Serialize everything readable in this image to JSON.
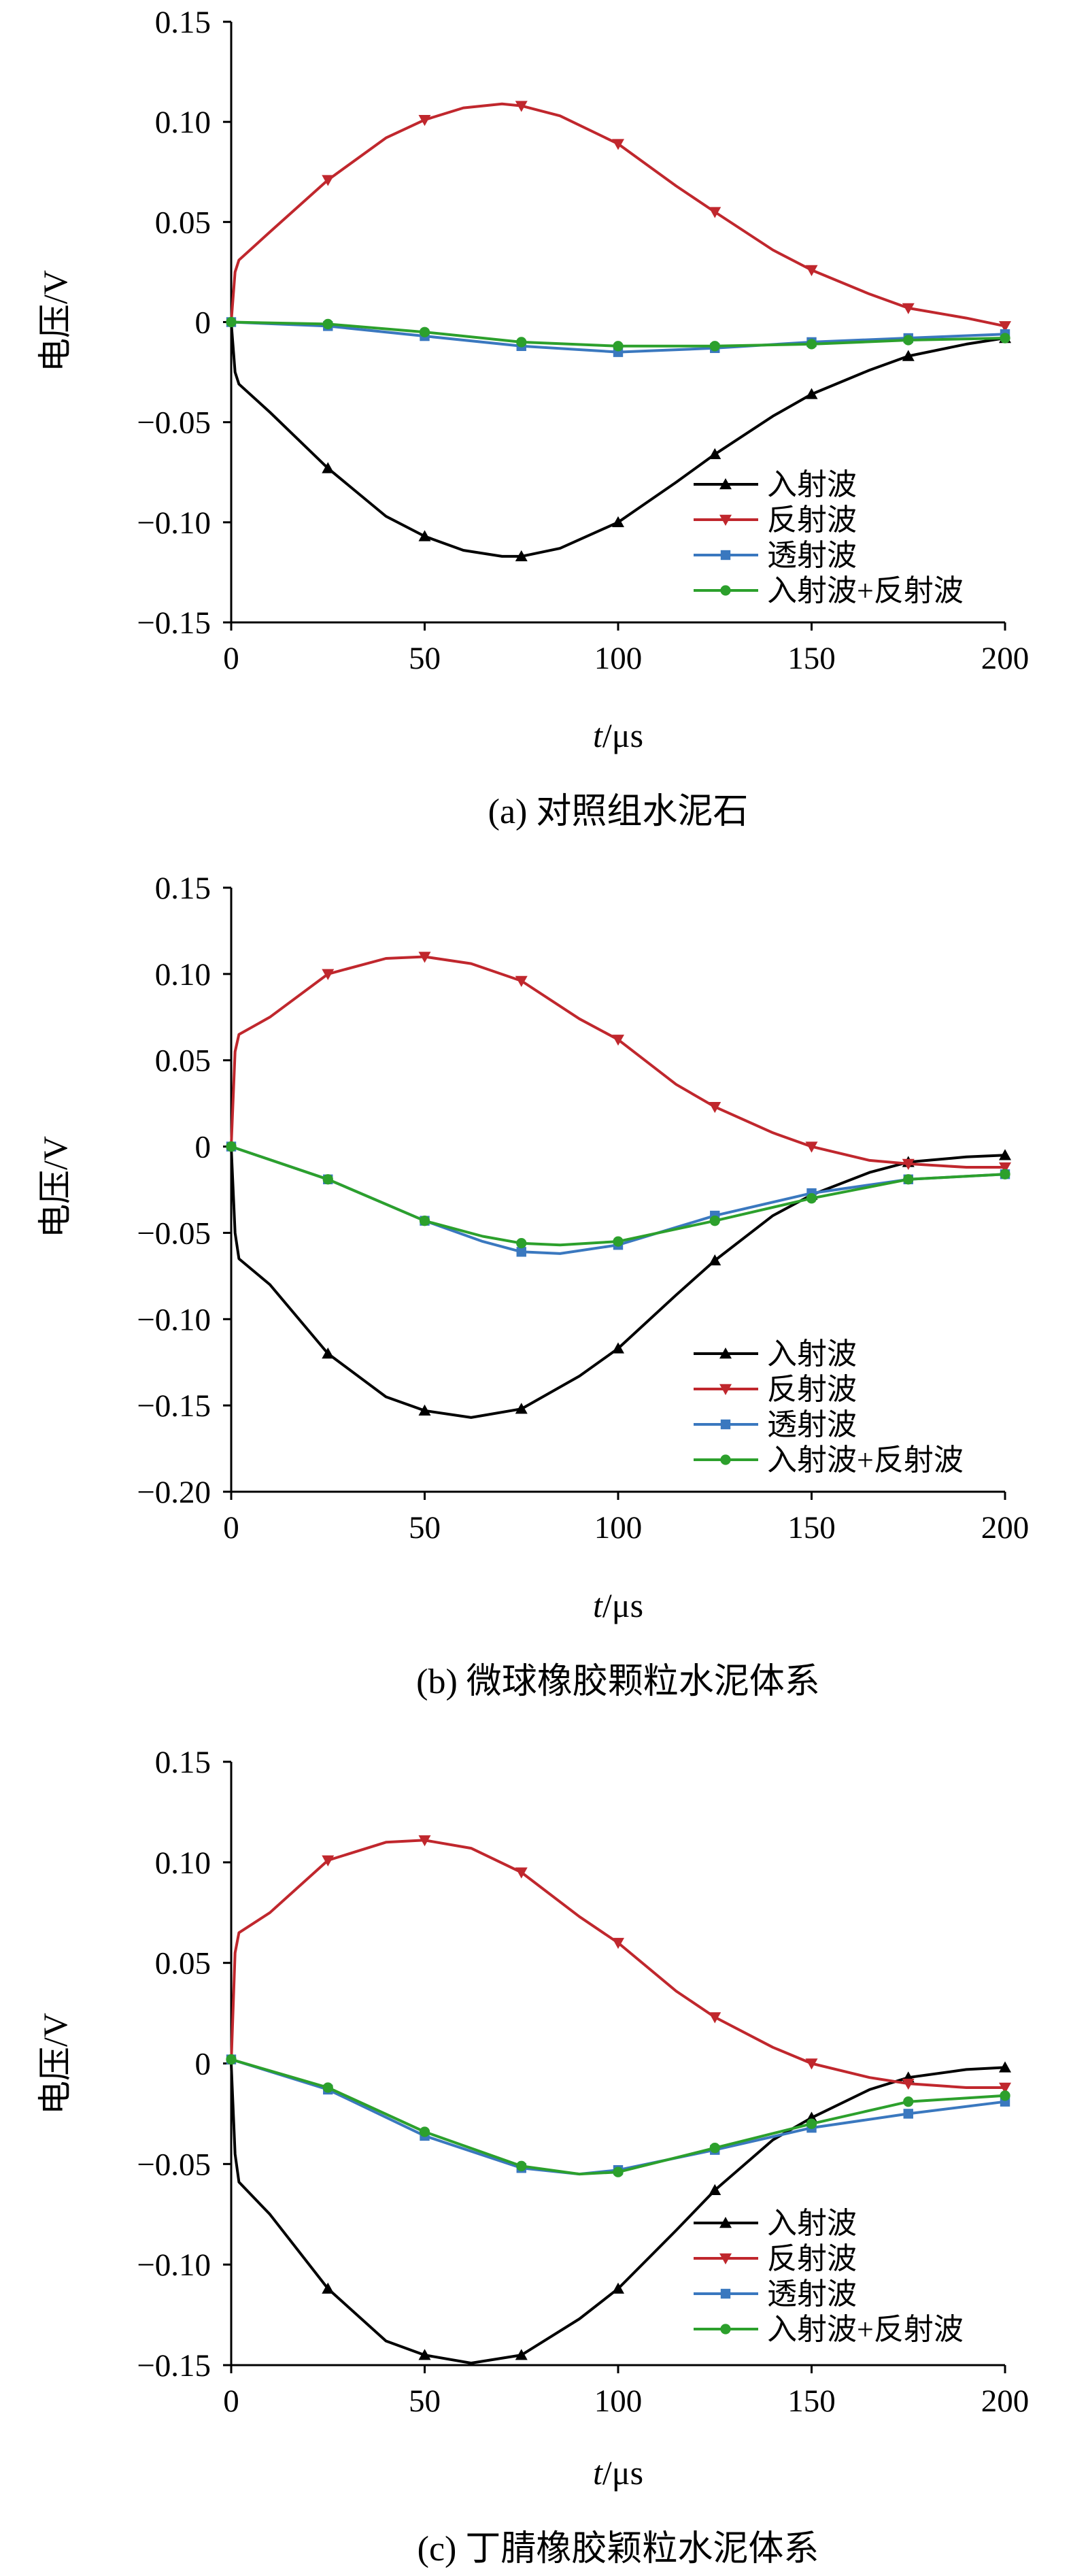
{
  "figure": {
    "panels": [
      {
        "caption": "(a) 对照组水泥石",
        "ylabel": "电压/V",
        "xlabel_italic": "t",
        "xlabel_unit": "/μs"
      },
      {
        "caption": "(b) 微球橡胶颗粒水泥体系",
        "ylabel": "电压/V",
        "xlabel_italic": "t",
        "xlabel_unit": "/μs"
      },
      {
        "caption": "(c) 丁腈橡胶颖粒水泥体系",
        "ylabel": "电压/V",
        "xlabel_italic": "t",
        "xlabel_unit": "/μs"
      }
    ]
  },
  "chart_data": [
    {
      "type": "line",
      "xlabel": "t/μs",
      "ylabel": "电压/V",
      "caption": "(a) 对照组水泥石",
      "xlim": [
        0,
        200
      ],
      "ylim": [
        -0.15,
        0.15
      ],
      "xticks": [
        0,
        50,
        100,
        150,
        200
      ],
      "xtick_labels": [
        "0",
        "50",
        "100",
        "150",
        "200"
      ],
      "yticks": [
        0.15,
        0.1,
        0.05,
        0,
        -0.05,
        -0.1,
        -0.15
      ],
      "ytick_labels": [
        "0.15",
        "0.10",
        "0.05",
        "0",
        "−0.05",
        "−0.10",
        "−0.15"
      ],
      "legend_position": "lower-right",
      "series": [
        {
          "name": "入射波",
          "color": "#000000",
          "marker": "triangle-up",
          "x": [
            0,
            1,
            2,
            10,
            25,
            40,
            50,
            60,
            70,
            75,
            85,
            100,
            115,
            125,
            140,
            150,
            165,
            175,
            190,
            200
          ],
          "y": [
            0,
            -0.025,
            -0.031,
            -0.045,
            -0.073,
            -0.097,
            -0.107,
            -0.114,
            -0.117,
            -0.117,
            -0.113,
            -0.1,
            -0.08,
            -0.066,
            -0.047,
            -0.036,
            -0.024,
            -0.017,
            -0.011,
            -0.008
          ]
        },
        {
          "name": "反射波",
          "color": "#c0272d",
          "marker": "triangle-down",
          "x": [
            0,
            1,
            2,
            10,
            25,
            40,
            50,
            60,
            70,
            75,
            85,
            100,
            115,
            125,
            140,
            150,
            165,
            175,
            190,
            200
          ],
          "y": [
            0,
            0.025,
            0.031,
            0.045,
            0.071,
            0.092,
            0.101,
            0.107,
            0.109,
            0.108,
            0.103,
            0.089,
            0.068,
            0.055,
            0.036,
            0.026,
            0.014,
            0.007,
            0.002,
            -0.002
          ]
        },
        {
          "name": "透射波",
          "color": "#3a78bf",
          "marker": "square",
          "x": [
            0,
            25,
            50,
            75,
            100,
            125,
            150,
            175,
            200
          ],
          "y": [
            0,
            -0.002,
            -0.007,
            -0.012,
            -0.015,
            -0.013,
            -0.01,
            -0.008,
            -0.006
          ]
        },
        {
          "name": "入射波+反射波",
          "color": "#2ca02c",
          "marker": "circle",
          "x": [
            0,
            25,
            50,
            75,
            100,
            125,
            150,
            175,
            200
          ],
          "y": [
            0,
            -0.001,
            -0.005,
            -0.01,
            -0.012,
            -0.012,
            -0.011,
            -0.009,
            -0.008
          ]
        }
      ]
    },
    {
      "type": "line",
      "xlabel": "t/μs",
      "ylabel": "电压/V",
      "caption": "(b) 微球橡胶颗粒水泥体系",
      "xlim": [
        0,
        200
      ],
      "ylim": [
        -0.2,
        0.15
      ],
      "xticks": [
        0,
        50,
        100,
        150,
        200
      ],
      "xtick_labels": [
        "0",
        "50",
        "100",
        "150",
        "200"
      ],
      "yticks": [
        0.15,
        0.1,
        0.05,
        0,
        -0.05,
        -0.1,
        -0.15,
        -0.2
      ],
      "ytick_labels": [
        "0.15",
        "0.10",
        "0.05",
        "0",
        "−0.05",
        "−0.10",
        "−0.15",
        "−0.20"
      ],
      "legend_position": "lower-right",
      "series": [
        {
          "name": "入射波",
          "color": "#000000",
          "marker": "triangle-up",
          "x": [
            0,
            1,
            2,
            10,
            25,
            40,
            50,
            62,
            75,
            90,
            100,
            115,
            125,
            140,
            150,
            165,
            175,
            190,
            200
          ],
          "y": [
            0,
            -0.05,
            -0.065,
            -0.08,
            -0.12,
            -0.145,
            -0.153,
            -0.157,
            -0.152,
            -0.133,
            -0.117,
            -0.086,
            -0.066,
            -0.04,
            -0.028,
            -0.015,
            -0.009,
            -0.006,
            -0.005
          ]
        },
        {
          "name": "反射波",
          "color": "#c0272d",
          "marker": "triangle-down",
          "x": [
            0,
            1,
            2,
            10,
            25,
            40,
            50,
            62,
            75,
            90,
            100,
            115,
            125,
            140,
            150,
            165,
            175,
            190,
            200
          ],
          "y": [
            0,
            0.055,
            0.065,
            0.075,
            0.1,
            0.109,
            0.11,
            0.106,
            0.096,
            0.074,
            0.062,
            0.036,
            0.023,
            0.008,
            0.0,
            -0.008,
            -0.01,
            -0.012,
            -0.012
          ]
        },
        {
          "name": "透射波",
          "color": "#3a78bf",
          "marker": "square",
          "x": [
            0,
            25,
            50,
            65,
            75,
            85,
            100,
            125,
            150,
            175,
            200
          ],
          "y": [
            0,
            -0.019,
            -0.043,
            -0.055,
            -0.061,
            -0.062,
            -0.057,
            -0.04,
            -0.027,
            -0.019,
            -0.016
          ]
        },
        {
          "name": "入射波+反射波",
          "color": "#2ca02c",
          "marker": "circle",
          "x": [
            0,
            25,
            50,
            65,
            75,
            85,
            100,
            125,
            150,
            175,
            200
          ],
          "y": [
            0,
            -0.019,
            -0.043,
            -0.052,
            -0.056,
            -0.057,
            -0.055,
            -0.043,
            -0.03,
            -0.019,
            -0.016
          ]
        }
      ]
    },
    {
      "type": "line",
      "xlabel": "t/μs",
      "ylabel": "电压/V",
      "caption": "(c) 丁腈橡胶颖粒水泥体系",
      "xlim": [
        0,
        200
      ],
      "ylim": [
        -0.15,
        0.15
      ],
      "xticks": [
        0,
        50,
        100,
        150,
        200
      ],
      "xtick_labels": [
        "0",
        "50",
        "100",
        "150",
        "200"
      ],
      "yticks": [
        0.15,
        0.1,
        0.05,
        0,
        -0.05,
        -0.1,
        -0.15
      ],
      "ytick_labels": [
        "0.15",
        "0.10",
        "0.05",
        "0",
        "−0.05",
        "−0.10",
        "−0.15"
      ],
      "legend_position": "lower-right",
      "series": [
        {
          "name": "入射波",
          "color": "#000000",
          "marker": "triangle-up",
          "x": [
            0,
            1,
            2,
            10,
            25,
            40,
            50,
            62,
            75,
            90,
            100,
            115,
            125,
            140,
            150,
            165,
            175,
            190,
            200
          ],
          "y": [
            0,
            -0.045,
            -0.059,
            -0.075,
            -0.112,
            -0.138,
            -0.145,
            -0.149,
            -0.145,
            -0.127,
            -0.112,
            -0.083,
            -0.063,
            -0.038,
            -0.027,
            -0.013,
            -0.007,
            -0.003,
            -0.002
          ]
        },
        {
          "name": "反射波",
          "color": "#c0272d",
          "marker": "triangle-down",
          "x": [
            0,
            1,
            2,
            10,
            25,
            40,
            50,
            62,
            75,
            90,
            100,
            115,
            125,
            140,
            150,
            165,
            175,
            190,
            200
          ],
          "y": [
            0,
            0.055,
            0.065,
            0.075,
            0.101,
            0.11,
            0.111,
            0.107,
            0.095,
            0.073,
            0.06,
            0.036,
            0.023,
            0.008,
            0.0,
            -0.007,
            -0.01,
            -0.012,
            -0.012
          ]
        },
        {
          "name": "透射波",
          "color": "#3a78bf",
          "marker": "square",
          "x": [
            0,
            25,
            50,
            75,
            90,
            100,
            125,
            150,
            175,
            200
          ],
          "y": [
            0.002,
            -0.013,
            -0.036,
            -0.052,
            -0.055,
            -0.053,
            -0.043,
            -0.032,
            -0.025,
            -0.019
          ]
        },
        {
          "name": "入射波+反射波",
          "color": "#2ca02c",
          "marker": "circle",
          "x": [
            0,
            25,
            50,
            75,
            90,
            100,
            125,
            150,
            175,
            200
          ],
          "y": [
            0.002,
            -0.012,
            -0.034,
            -0.051,
            -0.055,
            -0.054,
            -0.042,
            -0.03,
            -0.019,
            -0.016
          ]
        }
      ]
    }
  ]
}
